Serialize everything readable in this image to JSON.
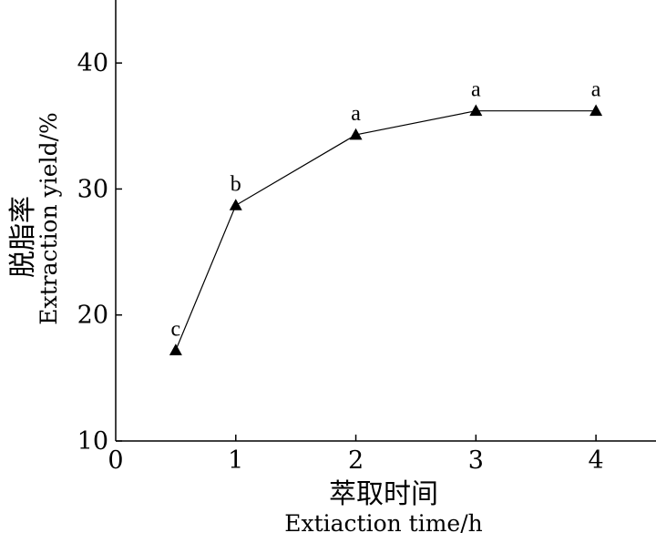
{
  "chart_data": {
    "type": "line",
    "title": "",
    "xlabel_cn": "萃取时间",
    "xlabel_en": "Extiaction time/h",
    "ylabel_cn": "脱脂率",
    "ylabel_en": "Extraction yield/%",
    "xlim": [
      0,
      4.5
    ],
    "ylim": [
      10,
      45
    ],
    "x_ticks": [
      0,
      1,
      2,
      3,
      4
    ],
    "y_ticks": [
      10,
      20,
      30,
      40
    ],
    "grid": false,
    "legend": "none",
    "marker": "triangle",
    "color": "#000000",
    "series": [
      {
        "x": [
          0.5,
          1,
          2,
          3,
          4
        ],
        "y": [
          17.2,
          28.7,
          34.3,
          36.2,
          36.2
        ],
        "labels": [
          "c",
          "b",
          "a",
          "a",
          "a"
        ]
      }
    ]
  }
}
